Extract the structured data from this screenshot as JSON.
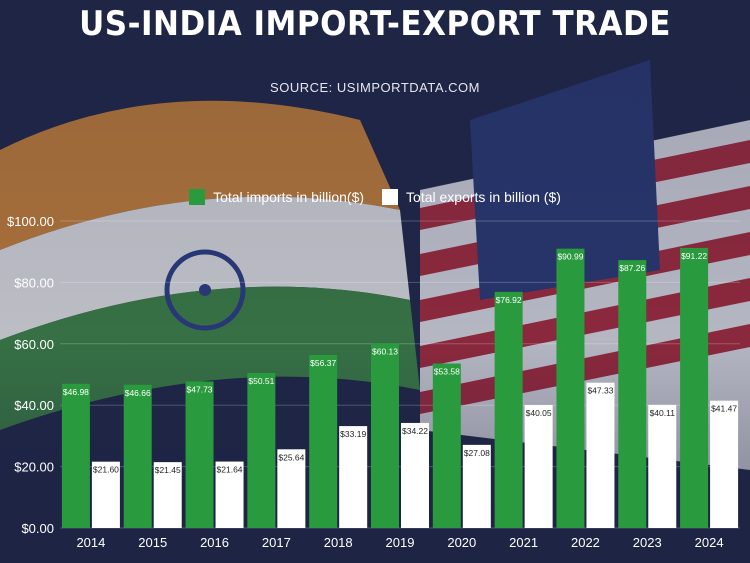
{
  "chart_data": {
    "type": "bar",
    "title": "US-INDIA IMPORT-EXPORT TRADE",
    "subtitle": "SOURCE:  USIMPORTDATA.COM",
    "categories": [
      "2014",
      "2015",
      "2016",
      "2017",
      "2018",
      "2019",
      "2020",
      "2021",
      "2022",
      "2023",
      "2024"
    ],
    "series": [
      {
        "name": "Total imports in billion($)",
        "color": "#2a9a3e",
        "values": [
          46.98,
          46.66,
          47.73,
          50.51,
          56.37,
          60.13,
          53.58,
          76.92,
          90.99,
          87.26,
          91.22
        ],
        "labels": [
          "$46.98",
          "$46.66",
          "$47.73",
          "$50.51",
          "$56.37",
          "$60.13",
          "$53.58",
          "$76.92",
          "$90.99",
          "$87.26",
          "$91.22"
        ]
      },
      {
        "name": "Total exports in billion ($)",
        "color": "#ffffff",
        "values": [
          21.6,
          21.45,
          21.64,
          25.64,
          33.19,
          34.22,
          27.08,
          40.05,
          47.33,
          40.11,
          41.47
        ],
        "labels": [
          "$21.60",
          "$21.45",
          "$21.64",
          "$25.64",
          "$33.19",
          "$34.22",
          "$27.08",
          "$40.05",
          "$47.33",
          "$40.11",
          "$41.47"
        ]
      }
    ],
    "yticks": [
      0,
      20,
      40,
      60,
      80,
      100
    ],
    "ytick_labels": [
      "$0.00",
      "$20.00",
      "$40.00",
      "$60.00",
      "$80.00",
      "$100.00"
    ],
    "ylim": [
      0,
      100
    ],
    "xlabel": "",
    "ylabel": "",
    "grid": true,
    "legend_position": "top-center"
  }
}
